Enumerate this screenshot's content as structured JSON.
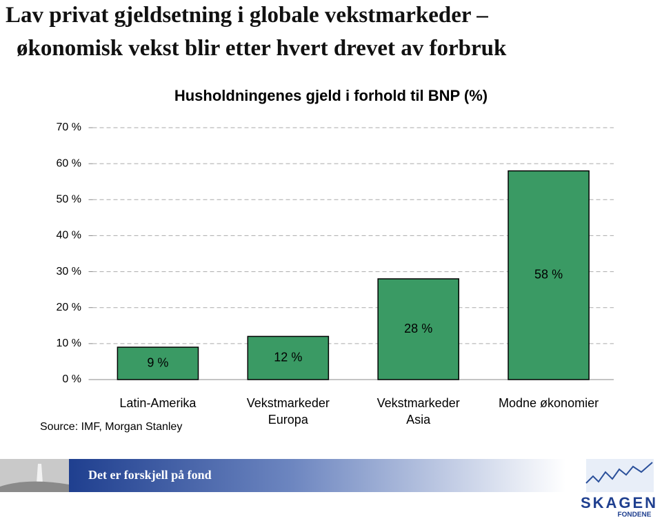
{
  "slide": {
    "heading": [
      "Lav privat gjeldsetning i globale vekstmarkeder –",
      "økonomisk vekst blir etter hvert drevet av forbruk"
    ],
    "footer": {
      "slogan": "Det er forskjell på fond",
      "logo": "SKAGEN",
      "logo_sub": "FONDENE"
    }
  },
  "chart_data": {
    "type": "bar",
    "title": "Husholdningenes gjeld i forhold til BNP (%)",
    "categories": [
      "Latin-Amerika",
      "Vekstmarkeder Europa",
      "Vekstmarkeder Asia",
      "Modne økonomier"
    ],
    "values": [
      9,
      12,
      28,
      58
    ],
    "value_labels": [
      "9 %",
      "12 %",
      "28 %",
      "58 %"
    ],
    "color": "#3a9a64",
    "ylim": [
      0,
      70
    ],
    "yticks": [
      {
        "value": 0,
        "label": "0 %"
      },
      {
        "value": 10,
        "label": "10 %"
      },
      {
        "value": 20,
        "label": "20 %"
      },
      {
        "value": 30,
        "label": "30 %"
      },
      {
        "value": 40,
        "label": "40 %"
      },
      {
        "value": 50,
        "label": "50 %"
      },
      {
        "value": 60,
        "label": "60 %"
      },
      {
        "value": 70,
        "label": "70 %"
      }
    ],
    "grid": true,
    "source": "Source: IMF, Morgan Stanley"
  }
}
